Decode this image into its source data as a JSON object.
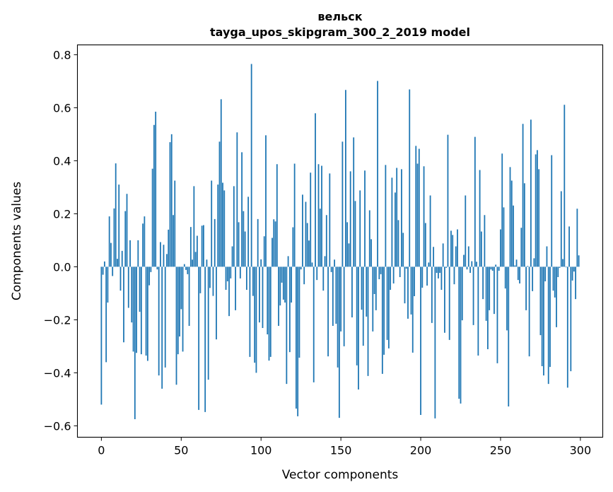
{
  "chart_data": {
    "type": "bar",
    "title": "вельск",
    "subtitle": "tayga_upos_skipgram_300_2_2019 model",
    "xlabel": "Vector components",
    "ylabel": "Components values",
    "xlim": [
      -15,
      314
    ],
    "ylim": [
      -0.643,
      0.837
    ],
    "xticks": [
      0,
      50,
      100,
      150,
      200,
      250,
      300
    ],
    "xtick_labels": [
      "0",
      "50",
      "100",
      "150",
      "200",
      "250",
      "300"
    ],
    "yticks": [
      -0.6,
      -0.4,
      -0.2,
      0.0,
      0.2,
      0.4,
      0.6,
      0.8
    ],
    "ytick_labels": [
      "−0.6",
      "−0.4",
      "−0.2",
      "0.0",
      "0.2",
      "0.4",
      "0.6",
      "0.8"
    ],
    "grid": false,
    "bar_color": "#1f77b4",
    "values": [
      -0.52,
      -0.03,
      0.02,
      -0.36,
      -0.135,
      0.19,
      0.09,
      -0.035,
      0.22,
      0.39,
      0.03,
      0.31,
      -0.09,
      0.06,
      -0.285,
      0.21,
      0.275,
      -0.155,
      0.1,
      -0.21,
      -0.32,
      -0.575,
      -0.325,
      0.1,
      -0.17,
      -0.33,
      0.163,
      0.19,
      -0.335,
      -0.355,
      -0.07,
      -0.02,
      0.37,
      0.535,
      0.585,
      -0.01,
      -0.41,
      0.093,
      -0.46,
      0.083,
      -0.38,
      0.048,
      0.14,
      0.47,
      0.5,
      0.195,
      0.325,
      -0.445,
      -0.33,
      -0.263,
      -0.16,
      -0.32,
      0.01,
      -0.012,
      -0.028,
      -0.223,
      0.15,
      0.027,
      0.304,
      0.056,
      0.117,
      -0.54,
      -0.1,
      0.155,
      0.157,
      -0.548,
      0.027,
      -0.426,
      -0.08,
      0.325,
      -0.11,
      0.18,
      -0.274,
      0.31,
      0.472,
      0.632,
      0.317,
      0.288,
      -0.087,
      -0.055,
      -0.186,
      -0.044,
      0.077,
      0.304,
      -0.164,
      0.507,
      0.168,
      -0.044,
      0.432,
      0.21,
      0.133,
      -0.087,
      0.264,
      -0.34,
      0.765,
      -0.11,
      -0.362,
      -0.4,
      0.18,
      -0.21,
      0.028,
      -0.231,
      0.115,
      0.496,
      -0.255,
      -0.354,
      -0.34,
      0.109,
      0.179,
      0.171,
      0.387,
      -0.223,
      -0.146,
      -0.06,
      -0.124,
      -0.135,
      -0.442,
      0.04,
      -0.322,
      -0.135,
      0.149,
      0.389,
      -0.535,
      -0.564,
      -0.343,
      -0.01,
      0.272,
      -0.066,
      0.245,
      0.165,
      0.099,
      0.355,
      0.016,
      -0.436,
      0.579,
      -0.05,
      0.387,
      0.219,
      0.381,
      -0.09,
      0.04,
      0.195,
      -0.338,
      0.352,
      -0.02,
      -0.223,
      0.027,
      -0.215,
      -0.38,
      -0.57,
      -0.244,
      0.472,
      -0.3,
      0.667,
      0.168,
      0.088,
      0.36,
      -0.191,
      0.488,
      0.248,
      -0.372,
      -0.463,
      0.288,
      -0.162,
      -0.298,
      0.363,
      -0.188,
      -0.412,
      0.213,
      0.104,
      -0.244,
      -0.103,
      -0.164,
      0.701,
      -0.047,
      -0.028,
      -0.404,
      -0.332,
      0.384,
      -0.276,
      -0.308,
      -0.087,
      0.336,
      -0.063,
      0.28,
      0.373,
      0.176,
      -0.039,
      0.368,
      0.128,
      -0.138,
      -0.007,
      -0.196,
      0.669,
      -0.18,
      -0.324,
      -0.111,
      0.456,
      0.389,
      0.445,
      -0.559,
      -0.079,
      0.379,
      0.165,
      -0.071,
      0.016,
      0.269,
      -0.212,
      0.075,
      -0.572,
      -0.023,
      -0.044,
      -0.023,
      -0.087,
      0.088,
      -0.249,
      -0.004,
      0.498,
      -0.276,
      0.136,
      0.12,
      -0.066,
      0.077,
      0.141,
      -0.498,
      -0.516,
      -0.202,
      0.045,
      0.269,
      -0.01,
      0.077,
      -0.023,
      0.021,
      -0.22,
      0.49,
      0.019,
      -0.335,
      0.365,
      0.133,
      -0.122,
      0.195,
      -0.204,
      -0.311,
      -0.164,
      -0.01,
      -0.015,
      -0.178,
      0.008,
      -0.364,
      -0.015,
      0.141,
      0.427,
      0.224,
      -0.082,
      -0.24,
      -0.527,
      0.376,
      0.325,
      0.231,
      0.005,
      0.027,
      -0.05,
      -0.063,
      0.147,
      0.539,
      0.315,
      -0.164,
      0.003,
      -0.338,
      0.555,
      -0.092,
      0.032,
      0.424,
      0.44,
      0.368,
      -0.258,
      -0.375,
      -0.41,
      -0.055,
      0.077,
      -0.442,
      -0.378,
      0.421,
      -0.09,
      -0.116,
      -0.228,
      -0.039,
      -0.004,
      0.285,
      0.029,
      0.611,
      -0.002,
      -0.456,
      0.152,
      -0.394,
      -0.052,
      -0.018,
      -0.122,
      0.219,
      0.043
    ]
  }
}
